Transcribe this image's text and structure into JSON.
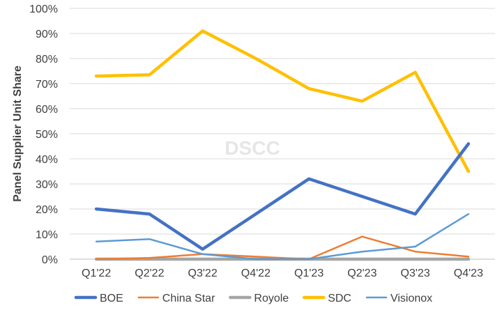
{
  "chart_data": {
    "type": "line",
    "watermark": "DSCC",
    "title": "",
    "xlabel": "",
    "ylabel": "Panel Supplier Unit Share",
    "categories": [
      "Q1'22",
      "Q2'22",
      "Q3'22",
      "Q4'22",
      "Q1'23",
      "Q2'23",
      "Q3'23",
      "Q4'23"
    ],
    "ylim": [
      0,
      100
    ],
    "y_ticks": [
      "0%",
      "10%",
      "20%",
      "30%",
      "40%",
      "50%",
      "60%",
      "70%",
      "80%",
      "90%",
      "100%"
    ],
    "grid": true,
    "legend_position": "bottom",
    "series": [
      {
        "name": "BOE",
        "color": "#4472C4",
        "line_weight": "thick",
        "values": [
          20,
          18,
          4,
          18,
          32,
          25,
          18,
          46
        ]
      },
      {
        "name": "China Star",
        "color": "#ED7D31",
        "line_weight": "thin",
        "values": [
          0,
          0.5,
          2,
          1,
          0,
          9,
          3,
          1
        ]
      },
      {
        "name": "Royole",
        "color": "#A5A5A5",
        "line_weight": "thick",
        "values": [
          0,
          0,
          0,
          0,
          0,
          0,
          0,
          0
        ]
      },
      {
        "name": "SDC",
        "color": "#FFC000",
        "line_weight": "thick",
        "values": [
          73,
          73.5,
          91,
          80,
          68,
          63,
          74.5,
          35
        ]
      },
      {
        "name": "Visionox",
        "color": "#5B9BD5",
        "line_weight": "thin",
        "values": [
          7,
          8,
          2,
          0,
          0,
          3,
          5,
          18
        ]
      }
    ]
  }
}
